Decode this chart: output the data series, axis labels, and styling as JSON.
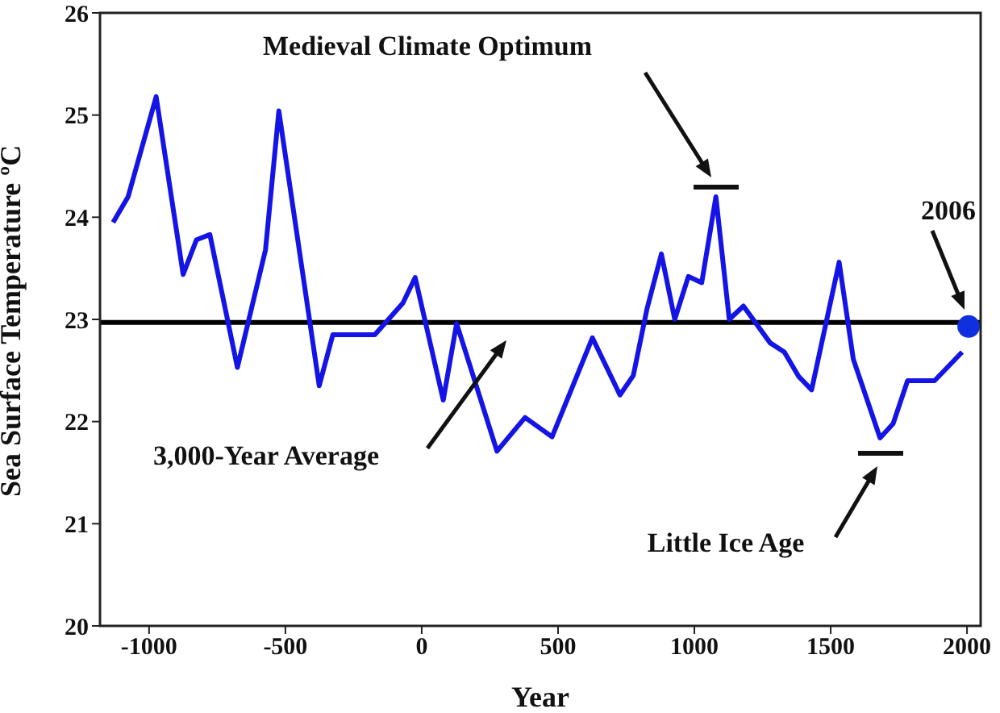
{
  "chart_data": {
    "type": "line",
    "xlabel": "Year",
    "ylabel": "Sea Surface Temperature ºC",
    "xlim": [
      -1180,
      2050
    ],
    "xticks": [
      -1000,
      -500,
      0,
      500,
      1000,
      1500,
      2000
    ],
    "ylim": [
      20,
      26
    ],
    "yticks": [
      20,
      21,
      22,
      23,
      24,
      25,
      26
    ],
    "line_style": "solid",
    "series": [
      {
        "color": "#1414e6",
        "x": [
          -1132,
          -1077,
          -974,
          -875,
          -826,
          -777,
          -676,
          -573,
          -524,
          -376,
          -326,
          -172,
          -69,
          -24,
          79,
          128,
          276,
          379,
          478,
          626,
          727,
          776,
          826,
          879,
          928,
          978,
          1027,
          1079,
          1128,
          1180,
          1278,
          1330,
          1383,
          1430,
          1531,
          1583,
          1681,
          1729,
          1782,
          1881,
          1982
        ],
        "values": [
          23.95,
          24.2,
          25.18,
          23.44,
          23.78,
          23.83,
          22.53,
          23.68,
          25.04,
          22.35,
          22.85,
          22.85,
          23.16,
          23.41,
          22.21,
          22.96,
          21.71,
          22.04,
          21.85,
          22.82,
          22.26,
          22.45,
          23.1,
          23.64,
          23.0,
          23.42,
          23.36,
          24.2,
          23.0,
          23.13,
          22.77,
          22.68,
          22.44,
          22.31,
          23.56,
          22.61,
          21.84,
          21.98,
          22.4,
          22.4,
          22.68
        ]
      },
      {
        "type": "scatter",
        "color": "#1030e0",
        "x": [
          2006
        ],
        "values": [
          22.93
        ]
      }
    ],
    "ref_lines": [
      {
        "axis": "y",
        "value": 22.97,
        "label": "3,000-Year Average",
        "color": "#000000"
      }
    ],
    "annotations": [
      "Medieval Climate Optimum",
      "Little Ice Age",
      "2006"
    ]
  }
}
